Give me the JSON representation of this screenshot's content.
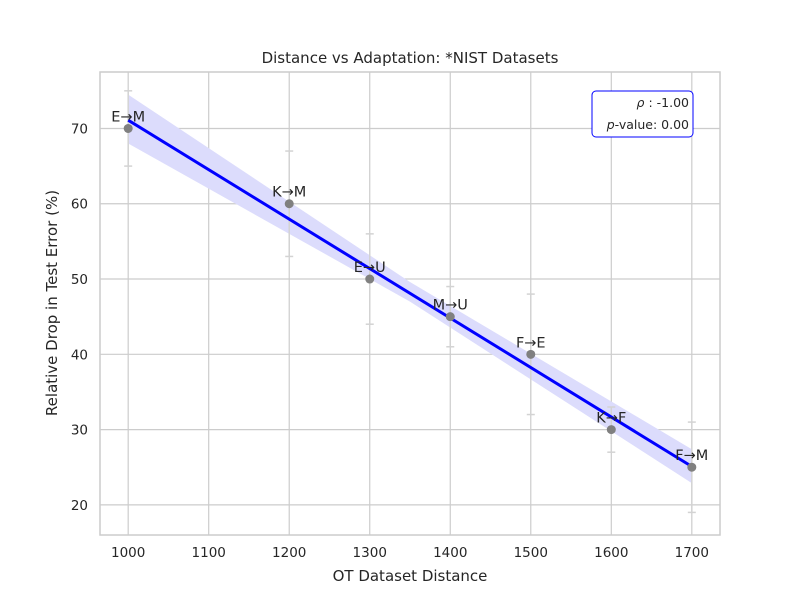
{
  "chart_data": {
    "type": "scatter",
    "title": "Distance vs Adaptation: *NIST Datasets",
    "xlabel": "OT Dataset Distance",
    "ylabel": "Relative Drop in Test Error (%)",
    "xlim": [
      965,
      1735
    ],
    "ylim": [
      16,
      77.5
    ],
    "xticks": [
      "1000",
      "1100",
      "1200",
      "1300",
      "1400",
      "1500",
      "1600",
      "1700"
    ],
    "yticks": [
      "20",
      "30",
      "40",
      "50",
      "60",
      "70"
    ],
    "grid": true,
    "points": [
      {
        "label": "E→M",
        "x": 1000,
        "y": 70,
        "err_low": 65,
        "err_high": 75
      },
      {
        "label": "K→M",
        "x": 1200,
        "y": 60,
        "err_low": 53,
        "err_high": 67
      },
      {
        "label": "E→U",
        "x": 1300,
        "y": 50,
        "err_low": 44,
        "err_high": 56
      },
      {
        "label": "M→U",
        "x": 1400,
        "y": 45,
        "err_low": 41,
        "err_high": 49
      },
      {
        "label": "F→E",
        "x": 1500,
        "y": 40,
        "err_low": 32,
        "err_high": 48
      },
      {
        "label": "K→F",
        "x": 1600,
        "y": 30,
        "err_low": 27,
        "err_high": 33
      },
      {
        "label": "F→M",
        "x": 1700,
        "y": 25,
        "err_low": 19,
        "err_high": 31
      }
    ],
    "regression": {
      "x_start": 1000,
      "y_start": 71.1,
      "x_end": 1700,
      "y_end": 25.1,
      "ci_start": [
        68.0,
        74.5
      ],
      "ci_mid": [
        47.0,
        49.6
      ],
      "ci_end": [
        22.9,
        27.4
      ],
      "line_color": "#0000ff",
      "band_color": "#dcdcfc"
    },
    "stats": {
      "rho_symbol": "ρ",
      "rho_text": " : -1.00",
      "p_symbol": "p",
      "p_text": "-value: 0.00",
      "legend_position": "top-right"
    },
    "colors": {
      "point": "#808080",
      "errorbar": "#d3d3d3",
      "grid": "#cccccc",
      "axis": "#cccccc"
    }
  }
}
